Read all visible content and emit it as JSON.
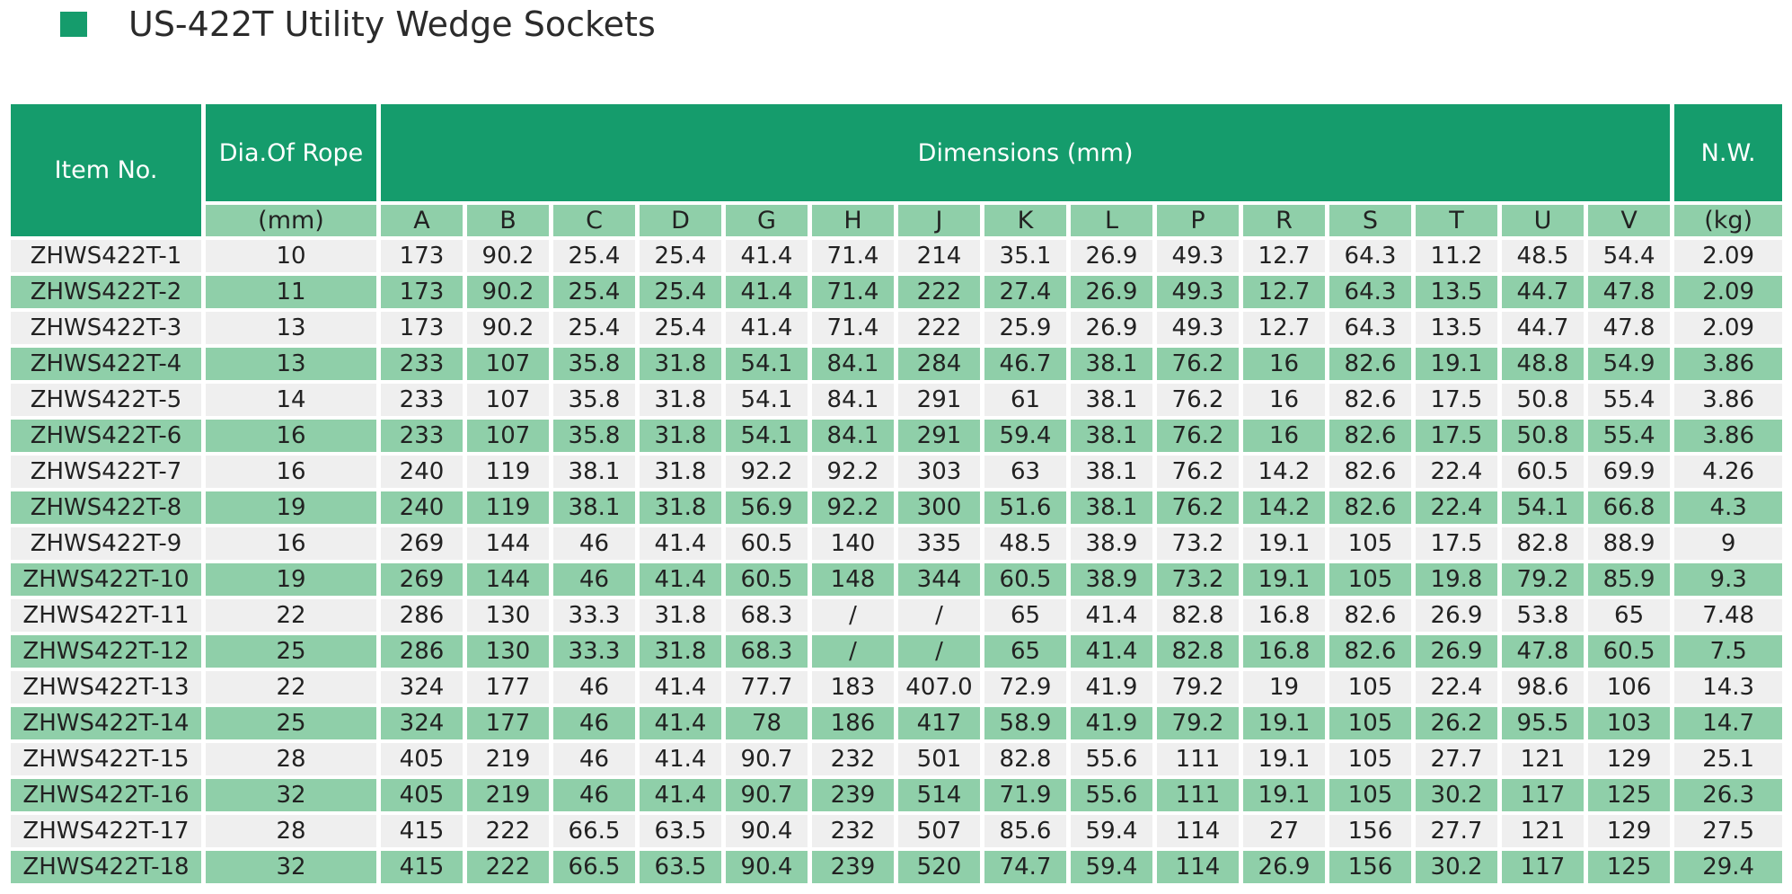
{
  "title": "US-422T Utility Wedge Sockets",
  "colors": {
    "accent": "#159c6c",
    "light_green": "#8fcfa9",
    "row_gray": "#efefef"
  },
  "table": {
    "header": {
      "item_no": "Item No.",
      "dia_of_rope": "Dia.Of Rope",
      "dimensions": "Dimensions (mm)",
      "nw": "N.W.",
      "dia_unit": "(mm)",
      "nw_unit": "(kg)",
      "dim_letters": [
        "A",
        "B",
        "C",
        "D",
        "G",
        "H",
        "J",
        "K",
        "L",
        "P",
        "R",
        "S",
        "T",
        "U",
        "V"
      ]
    },
    "rows": [
      {
        "item": "ZHWS422T-1",
        "dia": "10",
        "dims": [
          "173",
          "90.2",
          "25.4",
          "25.4",
          "41.4",
          "71.4",
          "214",
          "35.1",
          "26.9",
          "49.3",
          "12.7",
          "64.3",
          "11.2",
          "48.5",
          "54.4"
        ],
        "nw": "2.09"
      },
      {
        "item": "ZHWS422T-2",
        "dia": "11",
        "dims": [
          "173",
          "90.2",
          "25.4",
          "25.4",
          "41.4",
          "71.4",
          "222",
          "27.4",
          "26.9",
          "49.3",
          "12.7",
          "64.3",
          "13.5",
          "44.7",
          "47.8"
        ],
        "nw": "2.09"
      },
      {
        "item": "ZHWS422T-3",
        "dia": "13",
        "dims": [
          "173",
          "90.2",
          "25.4",
          "25.4",
          "41.4",
          "71.4",
          "222",
          "25.9",
          "26.9",
          "49.3",
          "12.7",
          "64.3",
          "13.5",
          "44.7",
          "47.8"
        ],
        "nw": "2.09"
      },
      {
        "item": "ZHWS422T-4",
        "dia": "13",
        "dims": [
          "233",
          "107",
          "35.8",
          "31.8",
          "54.1",
          "84.1",
          "284",
          "46.7",
          "38.1",
          "76.2",
          "16",
          "82.6",
          "19.1",
          "48.8",
          "54.9"
        ],
        "nw": "3.86"
      },
      {
        "item": "ZHWS422T-5",
        "dia": "14",
        "dims": [
          "233",
          "107",
          "35.8",
          "31.8",
          "54.1",
          "84.1",
          "291",
          "61",
          "38.1",
          "76.2",
          "16",
          "82.6",
          "17.5",
          "50.8",
          "55.4"
        ],
        "nw": "3.86"
      },
      {
        "item": "ZHWS422T-6",
        "dia": "16",
        "dims": [
          "233",
          "107",
          "35.8",
          "31.8",
          "54.1",
          "84.1",
          "291",
          "59.4",
          "38.1",
          "76.2",
          "16",
          "82.6",
          "17.5",
          "50.8",
          "55.4"
        ],
        "nw": "3.86"
      },
      {
        "item": "ZHWS422T-7",
        "dia": "16",
        "dims": [
          "240",
          "119",
          "38.1",
          "31.8",
          "92.2",
          "92.2",
          "303",
          "63",
          "38.1",
          "76.2",
          "14.2",
          "82.6",
          "22.4",
          "60.5",
          "69.9"
        ],
        "nw": "4.26"
      },
      {
        "item": "ZHWS422T-8",
        "dia": "19",
        "dims": [
          "240",
          "119",
          "38.1",
          "31.8",
          "56.9",
          "92.2",
          "300",
          "51.6",
          "38.1",
          "76.2",
          "14.2",
          "82.6",
          "22.4",
          "54.1",
          "66.8"
        ],
        "nw": "4.3"
      },
      {
        "item": "ZHWS422T-9",
        "dia": "16",
        "dims": [
          "269",
          "144",
          "46",
          "41.4",
          "60.5",
          "140",
          "335",
          "48.5",
          "38.9",
          "73.2",
          "19.1",
          "105",
          "17.5",
          "82.8",
          "88.9"
        ],
        "nw": "9"
      },
      {
        "item": "ZHWS422T-10",
        "dia": "19",
        "dims": [
          "269",
          "144",
          "46",
          "41.4",
          "60.5",
          "148",
          "344",
          "60.5",
          "38.9",
          "73.2",
          "19.1",
          "105",
          "19.8",
          "79.2",
          "85.9"
        ],
        "nw": "9.3"
      },
      {
        "item": "ZHWS422T-11",
        "dia": "22",
        "dims": [
          "286",
          "130",
          "33.3",
          "31.8",
          "68.3",
          "/",
          "/",
          "65",
          "41.4",
          "82.8",
          "16.8",
          "82.6",
          "26.9",
          "53.8",
          "65"
        ],
        "nw": "7.48"
      },
      {
        "item": "ZHWS422T-12",
        "dia": "25",
        "dims": [
          "286",
          "130",
          "33.3",
          "31.8",
          "68.3",
          "/",
          "/",
          "65",
          "41.4",
          "82.8",
          "16.8",
          "82.6",
          "26.9",
          "47.8",
          "60.5"
        ],
        "nw": "7.5"
      },
      {
        "item": "ZHWS422T-13",
        "dia": "22",
        "dims": [
          "324",
          "177",
          "46",
          "41.4",
          "77.7",
          "183",
          "407.0",
          "72.9",
          "41.9",
          "79.2",
          "19",
          "105",
          "22.4",
          "98.6",
          "106"
        ],
        "nw": "14.3"
      },
      {
        "item": "ZHWS422T-14",
        "dia": "25",
        "dims": [
          "324",
          "177",
          "46",
          "41.4",
          "78",
          "186",
          "417",
          "58.9",
          "41.9",
          "79.2",
          "19.1",
          "105",
          "26.2",
          "95.5",
          "103"
        ],
        "nw": "14.7"
      },
      {
        "item": "ZHWS422T-15",
        "dia": "28",
        "dims": [
          "405",
          "219",
          "46",
          "41.4",
          "90.7",
          "232",
          "501",
          "82.8",
          "55.6",
          "111",
          "19.1",
          "105",
          "27.7",
          "121",
          "129"
        ],
        "nw": "25.1"
      },
      {
        "item": "ZHWS422T-16",
        "dia": "32",
        "dims": [
          "405",
          "219",
          "46",
          "41.4",
          "90.7",
          "239",
          "514",
          "71.9",
          "55.6",
          "111",
          "19.1",
          "105",
          "30.2",
          "117",
          "125"
        ],
        "nw": "26.3"
      },
      {
        "item": "ZHWS422T-17",
        "dia": "28",
        "dims": [
          "415",
          "222",
          "66.5",
          "63.5",
          "90.4",
          "232",
          "507",
          "85.6",
          "59.4",
          "114",
          "27",
          "156",
          "27.7",
          "121",
          "129"
        ],
        "nw": "27.5"
      },
      {
        "item": "ZHWS422T-18",
        "dia": "32",
        "dims": [
          "415",
          "222",
          "66.5",
          "63.5",
          "90.4",
          "239",
          "520",
          "74.7",
          "59.4",
          "114",
          "26.9",
          "156",
          "30.2",
          "117",
          "125"
        ],
        "nw": "29.4"
      }
    ]
  }
}
